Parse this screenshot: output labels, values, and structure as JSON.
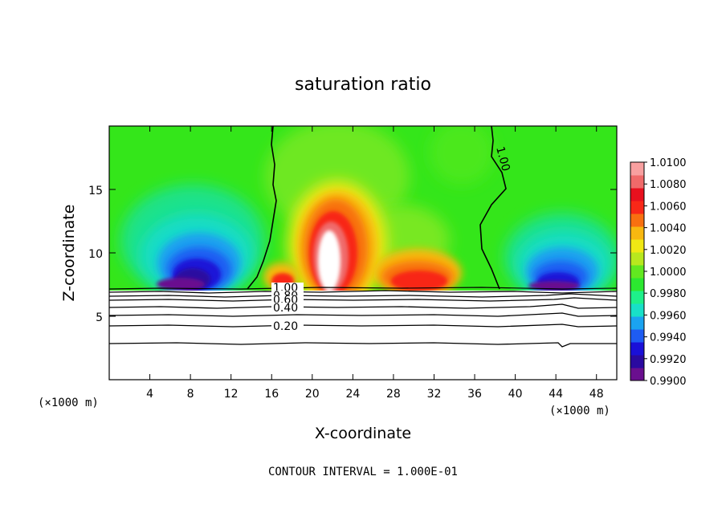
{
  "chart_data": {
    "type": "heatmap",
    "title": "saturation ratio",
    "xlabel": "X-coordinate",
    "ylabel": "Z-coordinate",
    "x_unit_left": "(×1000 m)",
    "x_unit_right": "(×1000 m)",
    "xlim": [
      0,
      50
    ],
    "ylim": [
      0,
      20
    ],
    "x_ticks": [
      4,
      8,
      12,
      16,
      20,
      24,
      28,
      32,
      36,
      40,
      44,
      48
    ],
    "y_ticks": [
      5,
      10,
      15
    ],
    "colorbar": {
      "min": 0.99,
      "max": 1.01,
      "labels": [
        "1.0100",
        "1.0080",
        "1.0060",
        "1.0040",
        "1.0020",
        "1.0000",
        "0.9980",
        "0.9960",
        "0.9940",
        "0.9920",
        "0.9900"
      ],
      "colors": [
        "#6a0f8f",
        "#2a0aa0",
        "#1a10d8",
        "#1e5cf2",
        "#1aa3f0",
        "#18e0c8",
        "#1ef08a",
        "#2ce830",
        "#62e820",
        "#b8e81e",
        "#f0e814",
        "#f8b810",
        "#f87010",
        "#f82818",
        "#e8101e",
        "#f06a6a",
        "#f8a0a0"
      ]
    },
    "contour_labels": [
      "1.00",
      "0.80",
      "0.60",
      "0.40",
      "0.20",
      "1.00"
    ],
    "footer": "CONTOUR INTERVAL = 1.000E-01",
    "contour_lines_z": [
      1.0,
      0.8,
      0.6,
      0.4,
      0.2
    ],
    "cloud_base_z": 7.1
  }
}
